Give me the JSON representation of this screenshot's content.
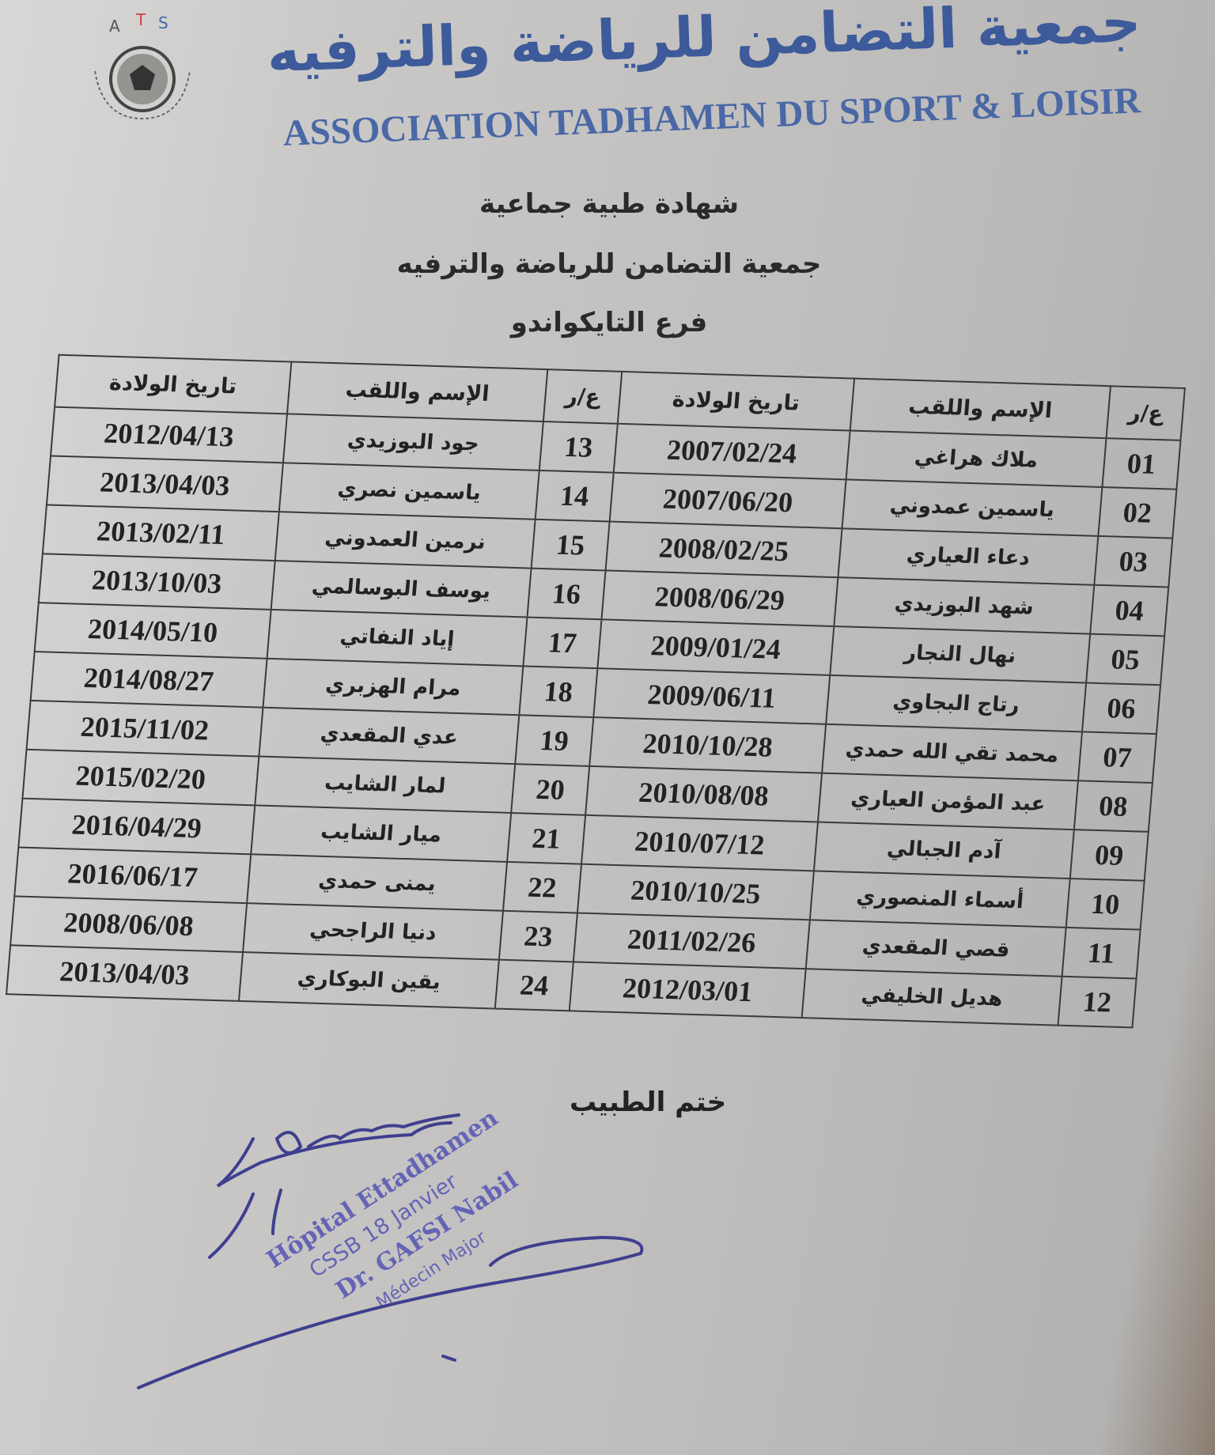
{
  "letterhead": {
    "logo_text": "ATS",
    "title_ar": "جمعية التضامن للرياضة والترفيه",
    "title_fr": "ASSOCIATION TADHAMEN DU SPORT & LOISIR",
    "brand_color": "#3d5a9a"
  },
  "document": {
    "heading1": "شهادة طبية جماعية",
    "heading2": "جمعية التضامن للرياضة والترفيه",
    "heading3": "فرع التايكواندو"
  },
  "table": {
    "headers": {
      "num": "ع/ر",
      "name": "الإسم واللقب",
      "dob": "تاريخ الولادة"
    },
    "rows": [
      {
        "right": {
          "num": "01",
          "name": "ملاك هراغي",
          "dob": "2007/02/24"
        },
        "left": {
          "num": "13",
          "name": "جود البوزيدي",
          "dob": "2012/04/13"
        }
      },
      {
        "right": {
          "num": "02",
          "name": "ياسمين عمدوني",
          "dob": "2007/06/20"
        },
        "left": {
          "num": "14",
          "name": "ياسمين نصري",
          "dob": "2013/04/03"
        }
      },
      {
        "right": {
          "num": "03",
          "name": "دعاء العياري",
          "dob": "2008/02/25"
        },
        "left": {
          "num": "15",
          "name": "نرمين العمدوني",
          "dob": "2013/02/11"
        }
      },
      {
        "right": {
          "num": "04",
          "name": "شهد البوزيدي",
          "dob": "2008/06/29"
        },
        "left": {
          "num": "16",
          "name": "يوسف البوسالمي",
          "dob": "2013/10/03"
        }
      },
      {
        "right": {
          "num": "05",
          "name": "نهال النجار",
          "dob": "2009/01/24"
        },
        "left": {
          "num": "17",
          "name": "إياد النفاتي",
          "dob": "2014/05/10"
        }
      },
      {
        "right": {
          "num": "06",
          "name": "رتاج البجاوي",
          "dob": "2009/06/11"
        },
        "left": {
          "num": "18",
          "name": "مرام الهزبري",
          "dob": "2014/08/27"
        }
      },
      {
        "right": {
          "num": "07",
          "name": "محمد تقي الله حمدي",
          "dob": "2010/10/28"
        },
        "left": {
          "num": "19",
          "name": "عدي المقعدي",
          "dob": "2015/11/02"
        }
      },
      {
        "right": {
          "num": "08",
          "name": "عبد المؤمن العياري",
          "dob": "2010/08/08"
        },
        "left": {
          "num": "20",
          "name": "لمار الشايب",
          "dob": "2015/02/20"
        }
      },
      {
        "right": {
          "num": "09",
          "name": "آدم الجبالي",
          "dob": "2010/07/12"
        },
        "left": {
          "num": "21",
          "name": "ميار الشايب",
          "dob": "2016/04/29"
        }
      },
      {
        "right": {
          "num": "10",
          "name": "أسماء المنصوري",
          "dob": "2010/10/25"
        },
        "left": {
          "num": "22",
          "name": "يمنى حمدي",
          "dob": "2016/06/17"
        }
      },
      {
        "right": {
          "num": "11",
          "name": "قصي المقعدي",
          "dob": "2011/02/26"
        },
        "left": {
          "num": "23",
          "name": "دنيا الراجحي",
          "dob": "2008/06/08"
        }
      },
      {
        "right": {
          "num": "12",
          "name": "هديل الخليفي",
          "dob": "2012/03/01"
        },
        "left": {
          "num": "24",
          "name": "يقين البوكاري",
          "dob": "2013/04/03"
        }
      }
    ]
  },
  "footer": {
    "signature_label": "ختم الطبيب",
    "stamp": {
      "line1": "Hôpital Ettadhamen",
      "line2": "CSSB 18 Janvier",
      "line3": "Dr. GAFSI Nabil",
      "line4": "Médecin Major",
      "color": "#5a5ab5"
    }
  }
}
